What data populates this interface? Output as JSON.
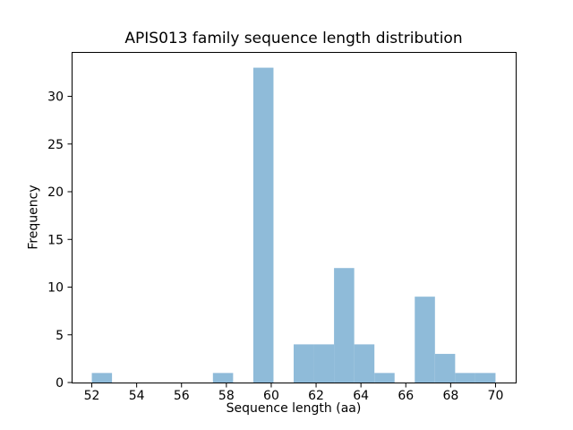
{
  "chart_data": {
    "type": "bar",
    "subtype": "histogram",
    "title": "APIS013 family sequence length distribution",
    "xlabel": "Sequence length (aa)",
    "ylabel": "Frequency",
    "bin_start": 52.0,
    "bin_width": 0.9,
    "bin_edges": [
      52.0,
      52.9,
      53.8,
      54.7,
      55.6,
      56.5,
      57.4,
      58.3,
      59.2,
      60.1,
      61.0,
      61.9,
      62.8,
      63.7,
      64.6,
      65.5,
      66.4,
      67.3,
      68.2,
      69.1,
      70.0
    ],
    "values": [
      1,
      0,
      0,
      0,
      0,
      0,
      1,
      0,
      33,
      0,
      4,
      4,
      12,
      4,
      1,
      0,
      9,
      3,
      1,
      1
    ],
    "x_ticks": [
      52,
      54,
      56,
      58,
      60,
      62,
      64,
      66,
      68,
      70
    ],
    "y_ticks": [
      0,
      5,
      10,
      15,
      20,
      25,
      30
    ],
    "xlim": [
      51.1,
      70.9
    ],
    "ylim": [
      0,
      34.65
    ],
    "grid": false,
    "legend": null,
    "bar_color": "#8fbbd9",
    "axis_color": "#000000",
    "tick_label_color": "#000000",
    "background_color": "#ffffff"
  }
}
